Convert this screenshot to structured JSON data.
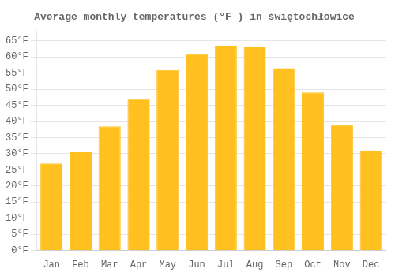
{
  "chart_data": {
    "type": "bar",
    "title": "Average monthly temperatures (°F ) in świętochłowice",
    "categories": [
      "Jan",
      "Feb",
      "Mar",
      "Apr",
      "May",
      "Jun",
      "Jul",
      "Aug",
      "Sep",
      "Oct",
      "Nov",
      "Dec"
    ],
    "values": [
      27,
      30.5,
      38.5,
      47,
      56,
      61,
      63.5,
      63,
      56.5,
      49,
      39,
      31
    ],
    "color": "#FFC020",
    "ylim": [
      0,
      68
    ],
    "yticks": [
      {
        "value": 0,
        "label": "0°F"
      },
      {
        "value": 5,
        "label": "5°F"
      },
      {
        "value": 10,
        "label": "10°F"
      },
      {
        "value": 15,
        "label": "15°F"
      },
      {
        "value": 20,
        "label": "20°F"
      },
      {
        "value": 25,
        "label": "25°F"
      },
      {
        "value": 30,
        "label": "30°F"
      },
      {
        "value": 35,
        "label": "35°F"
      },
      {
        "value": 40,
        "label": "40°F"
      },
      {
        "value": 45,
        "label": "45°F"
      },
      {
        "value": 50,
        "label": "50°F"
      },
      {
        "value": 55,
        "label": "55°F"
      },
      {
        "value": 60,
        "label": "60°F"
      },
      {
        "value": 65,
        "label": "65°F"
      }
    ],
    "grid": true
  }
}
